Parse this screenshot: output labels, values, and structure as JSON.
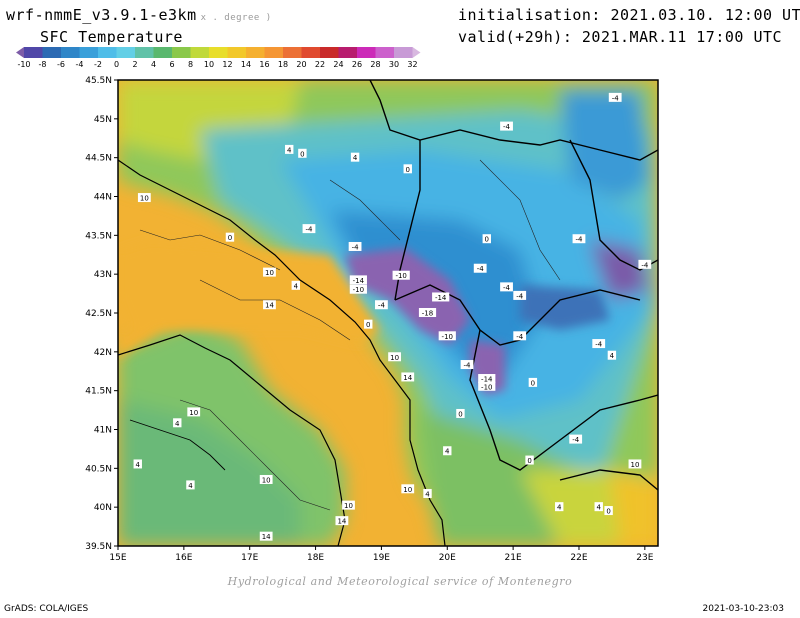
{
  "header": {
    "model": "wrf-nmmE_v3.9.1-e3km",
    "unit": "x . degree )",
    "field": "SFC Temperature",
    "init_label": "initialisation: 2021.03.10. 12:00 UTC",
    "valid_label": "valid(+29h): 2021.MAR.11 17:00 UTC"
  },
  "colorbar": {
    "labels": [
      "-10",
      "-8",
      "-6",
      "-4",
      "-2",
      "0",
      "2",
      "4",
      "6",
      "8",
      "10",
      "12",
      "14",
      "16",
      "18",
      "20",
      "22",
      "24",
      "26",
      "28",
      "30",
      "32"
    ],
    "colors": [
      "#7d5ca8",
      "#5047a8",
      "#2c6ab3",
      "#2f86c8",
      "#3aa0da",
      "#4fbde8",
      "#63cfe6",
      "#61c2a8",
      "#5ab86e",
      "#8ac84a",
      "#c0d93a",
      "#e8de2a",
      "#f2c82a",
      "#f5b030",
      "#f59634",
      "#ec7035",
      "#e04a2f",
      "#c92a2a",
      "#b81c6e",
      "#cc2ab8",
      "#cc60cc",
      "#c89ad6",
      "#d8b8e0"
    ]
  },
  "map": {
    "lon_ticks": [
      "15E",
      "16E",
      "17E",
      "18E",
      "19E",
      "20E",
      "21E",
      "22E",
      "23E"
    ],
    "lat_ticks": [
      "45.5N",
      "45N",
      "44.5N",
      "44N",
      "43.5N",
      "43N",
      "42.5N",
      "42N",
      "41.5N",
      "41N",
      "40.5N",
      "40N",
      "39.5N"
    ],
    "contour_labels": [
      {
        "t": "-4",
        "lon": 22.55,
        "lat": 45.27
      },
      {
        "t": "-4",
        "lon": 20.9,
        "lat": 44.9
      },
      {
        "t": "4",
        "lon": 17.6,
        "lat": 44.6
      },
      {
        "t": "0",
        "lon": 17.8,
        "lat": 44.55
      },
      {
        "t": "4",
        "lon": 18.6,
        "lat": 44.5
      },
      {
        "t": "0",
        "lon": 19.4,
        "lat": 44.35
      },
      {
        "t": "10",
        "lon": 15.4,
        "lat": 43.98
      },
      {
        "t": "-4",
        "lon": 17.9,
        "lat": 43.58
      },
      {
        "t": "0",
        "lon": 16.7,
        "lat": 43.47
      },
      {
        "t": "-4",
        "lon": 18.6,
        "lat": 43.35
      },
      {
        "t": "0",
        "lon": 20.6,
        "lat": 43.45
      },
      {
        "t": "-4",
        "lon": 22.0,
        "lat": 43.45
      },
      {
        "t": "-4",
        "lon": 23.0,
        "lat": 43.12
      },
      {
        "t": "10",
        "lon": 17.3,
        "lat": 43.02
      },
      {
        "t": "4",
        "lon": 17.7,
        "lat": 42.85
      },
      {
        "t": "14",
        "lon": 17.3,
        "lat": 42.6
      },
      {
        "t": "-14",
        "lon": 18.65,
        "lat": 42.92
      },
      {
        "t": "-10",
        "lon": 18.65,
        "lat": 42.8
      },
      {
        "t": "-10",
        "lon": 19.3,
        "lat": 42.98
      },
      {
        "t": "-4",
        "lon": 19.0,
        "lat": 42.6
      },
      {
        "t": "-14",
        "lon": 19.9,
        "lat": 42.7
      },
      {
        "t": "-18",
        "lon": 19.7,
        "lat": 42.5
      },
      {
        "t": "-4",
        "lon": 20.5,
        "lat": 43.07
      },
      {
        "t": "-4",
        "lon": 20.9,
        "lat": 42.83
      },
      {
        "t": "-4",
        "lon": 21.1,
        "lat": 42.72
      },
      {
        "t": "0",
        "lon": 18.8,
        "lat": 42.35
      },
      {
        "t": "-10",
        "lon": 20.0,
        "lat": 42.2
      },
      {
        "t": "-4",
        "lon": 21.1,
        "lat": 42.2
      },
      {
        "t": "-4",
        "lon": 22.3,
        "lat": 42.1
      },
      {
        "t": "4",
        "lon": 22.5,
        "lat": 41.95
      },
      {
        "t": "10",
        "lon": 19.2,
        "lat": 41.93
      },
      {
        "t": "-4",
        "lon": 20.3,
        "lat": 41.83
      },
      {
        "t": "-14",
        "lon": 20.6,
        "lat": 41.65
      },
      {
        "t": "-10",
        "lon": 20.6,
        "lat": 41.55
      },
      {
        "t": "14",
        "lon": 19.4,
        "lat": 41.67
      },
      {
        "t": "0",
        "lon": 21.3,
        "lat": 41.6
      },
      {
        "t": "10",
        "lon": 16.15,
        "lat": 41.22
      },
      {
        "t": "4",
        "lon": 15.9,
        "lat": 41.08
      },
      {
        "t": "0",
        "lon": 20.2,
        "lat": 41.2
      },
      {
        "t": "-4",
        "lon": 21.95,
        "lat": 40.87
      },
      {
        "t": "4",
        "lon": 20.0,
        "lat": 40.72
      },
      {
        "t": "4",
        "lon": 15.3,
        "lat": 40.55
      },
      {
        "t": "10",
        "lon": 17.25,
        "lat": 40.35
      },
      {
        "t": "4",
        "lon": 16.1,
        "lat": 40.28
      },
      {
        "t": "10",
        "lon": 18.5,
        "lat": 40.02
      },
      {
        "t": "10",
        "lon": 19.4,
        "lat": 40.23
      },
      {
        "t": "4",
        "lon": 19.7,
        "lat": 40.17
      },
      {
        "t": "14",
        "lon": 18.4,
        "lat": 39.82
      },
      {
        "t": "14",
        "lon": 17.25,
        "lat": 39.62
      },
      {
        "t": "4",
        "lon": 22.3,
        "lat": 40.0
      },
      {
        "t": "0",
        "lon": 22.45,
        "lat": 39.95
      },
      {
        "t": "10",
        "lon": 22.85,
        "lat": 40.55
      },
      {
        "t": "0",
        "lon": 21.25,
        "lat": 40.6
      },
      {
        "t": "4",
        "lon": 21.7,
        "lat": 40.0
      }
    ]
  },
  "footer": {
    "credit": "Hydrological and Meteorological service of Montenegro",
    "grads": "GrADS: COLA/IGES",
    "timestamp": "2021-03-10-23:03"
  }
}
